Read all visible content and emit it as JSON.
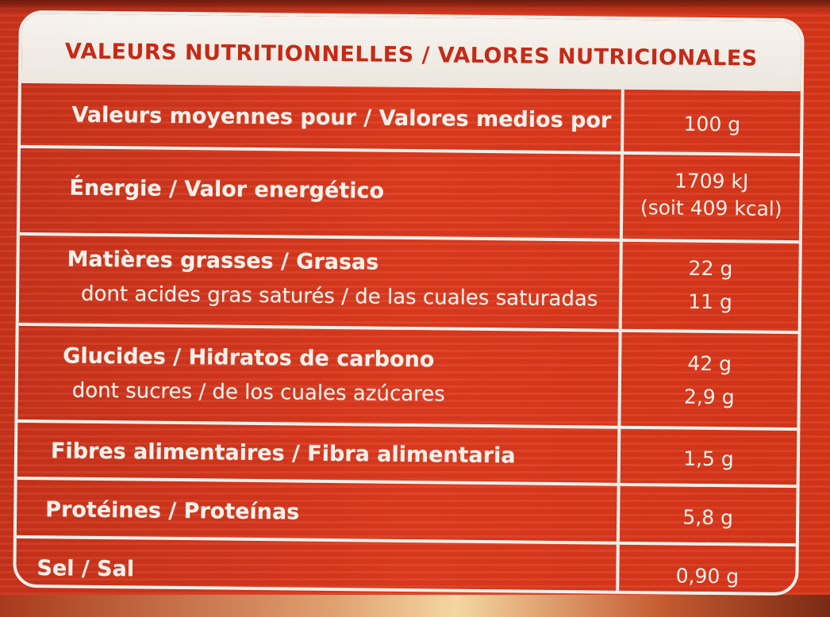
{
  "table": {
    "title": "VALEURS NUTRITIONNELLES / VALORES NUTRICIONALES",
    "header": {
      "label": "Valeurs moyennes pour / Valores medios por",
      "value": "100 g"
    },
    "energy": {
      "label": "Énergie / Valor energético",
      "value_kj": "1709 kJ",
      "value_kcal": "(soit 409 kcal)"
    },
    "fat": {
      "label": "Matières grasses / Grasas",
      "value": "22 g",
      "saturated_label": "dont acides gras saturés / de las cuales saturadas",
      "saturated_value": "11 g"
    },
    "carbs": {
      "label": "Glucides / Hidratos de carbono",
      "value": "42 g",
      "sugars_label": "dont sucres / de los cuales azúcares",
      "sugars_value": "2,9 g"
    },
    "fibre": {
      "label": "Fibres alimentaires / Fibra alimentaria",
      "value": "1,5 g"
    },
    "protein": {
      "label": "Protéines / Proteínas",
      "value": "5,8 g"
    },
    "salt": {
      "label": "Sel / Sal",
      "value": "0,90 g"
    }
  },
  "colors": {
    "package_red": "#dd3a1e",
    "title_red": "#c52a17",
    "rule_white": "#f4efe9"
  }
}
